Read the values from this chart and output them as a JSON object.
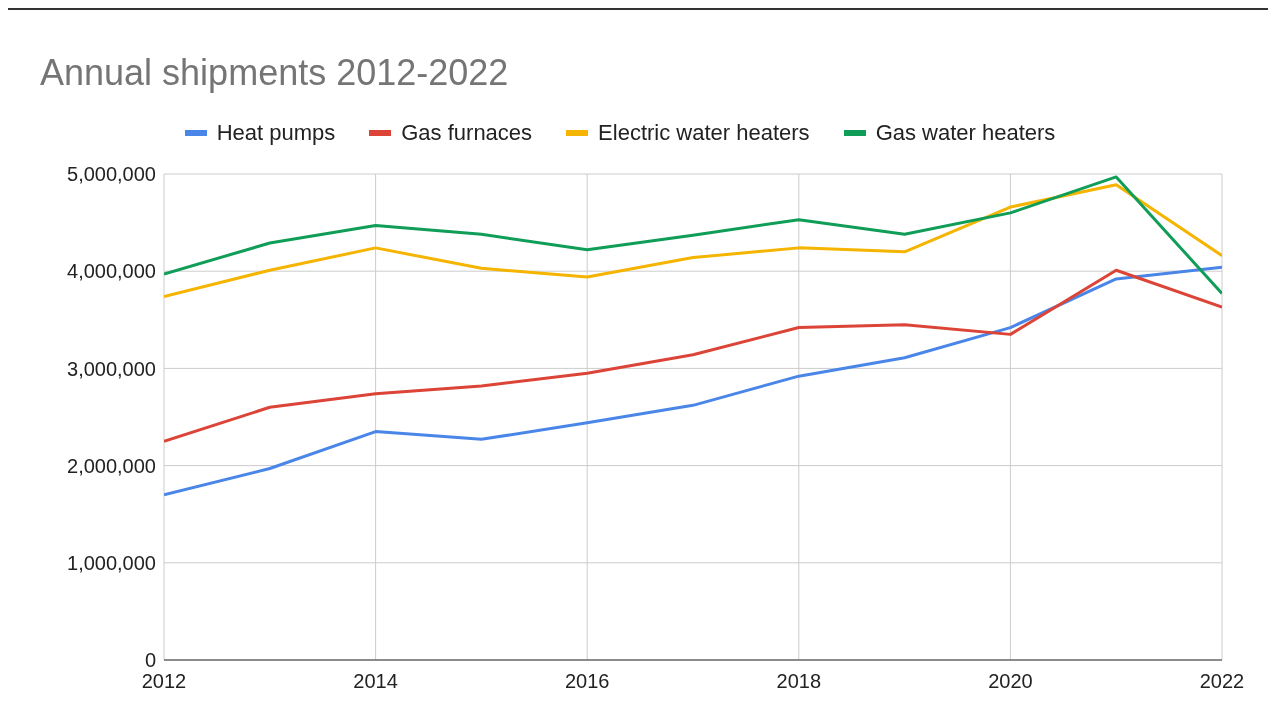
{
  "chart_data": {
    "type": "line",
    "title": "Annual shipments 2012-2022",
    "x": [
      2012,
      2013,
      2014,
      2015,
      2016,
      2017,
      2018,
      2019,
      2020,
      2021,
      2022
    ],
    "series": [
      {
        "name": "Heat pumps",
        "color": "#4a86e8",
        "values": [
          1700000,
          1970000,
          2350000,
          2270000,
          2440000,
          2620000,
          2920000,
          3110000,
          3420000,
          3920000,
          4040000
        ]
      },
      {
        "name": "Gas furnaces",
        "color": "#db4437",
        "values": [
          2250000,
          2600000,
          2740000,
          2820000,
          2950000,
          3140000,
          3420000,
          3450000,
          3350000,
          4010000,
          3630000
        ]
      },
      {
        "name": "Electric water heaters",
        "color": "#f4b400",
        "values": [
          3740000,
          4010000,
          4240000,
          4030000,
          3940000,
          4140000,
          4240000,
          4200000,
          4660000,
          4890000,
          4160000
        ]
      },
      {
        "name": "Gas water heaters",
        "color": "#0f9d58",
        "values": [
          3970000,
          4290000,
          4470000,
          4380000,
          4220000,
          4370000,
          4530000,
          4380000,
          4600000,
          4970000,
          3770000
        ]
      }
    ],
    "xlim": [
      2012,
      2022
    ],
    "xticks": [
      2012,
      2014,
      2016,
      2018,
      2020,
      2022
    ],
    "ylim": [
      0,
      5000000
    ],
    "yticks": [
      0,
      {
        "value": 1000000,
        "label": "1,000,000"
      },
      {
        "value": 2000000,
        "label": "2,000,000"
      },
      {
        "value": 3000000,
        "label": "3,000,000"
      },
      {
        "value": 4000000,
        "label": "4,000,000"
      },
      {
        "value": 5000000,
        "label": "5,000,000"
      }
    ],
    "grid": true,
    "legend": "top",
    "marker": "none",
    "line_style": "solid"
  }
}
